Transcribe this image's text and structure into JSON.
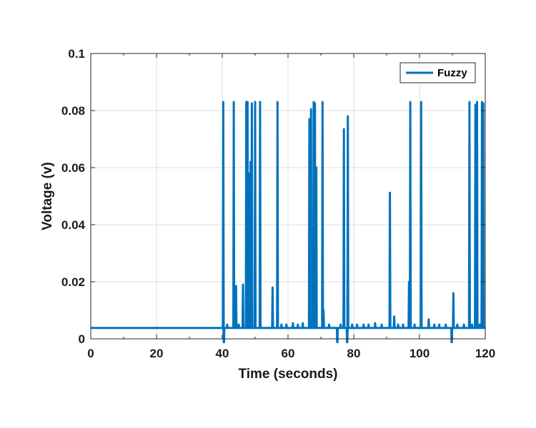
{
  "chart_data": {
    "type": "line",
    "xlabel": "Time (seconds)",
    "ylabel": "Voltage (v)",
    "xlim": [
      0,
      120
    ],
    "ylim": [
      0,
      0.1
    ],
    "x_ticks": [
      0,
      20,
      40,
      60,
      80,
      100,
      120
    ],
    "y_ticks": [
      0,
      0.02,
      0.04,
      0.06,
      0.08,
      0.1
    ],
    "x_tick_labels": [
      "0",
      "20",
      "40",
      "60",
      "80",
      "100",
      "120"
    ],
    "y_tick_labels": [
      "0",
      "0.02",
      "0.04",
      "0.06",
      "0.08",
      "0.1"
    ],
    "grid": true,
    "legend_position": "top-right",
    "baseline": 0.0038,
    "series": [
      {
        "name": "Fuzzy",
        "color": "#0072BD",
        "spikes": [
          {
            "x": 40.3,
            "y": 0.083
          },
          {
            "x": 40.5,
            "y": -0.003
          },
          {
            "x": 41.5,
            "y": 0.005
          },
          {
            "x": 43.5,
            "y": 0.083
          },
          {
            "x": 44.2,
            "y": 0.0185
          },
          {
            "x": 45.0,
            "y": 0.005
          },
          {
            "x": 46.3,
            "y": 0.019
          },
          {
            "x": 47.3,
            "y": 0.083
          },
          {
            "x": 47.7,
            "y": 0.083
          },
          {
            "x": 48.0,
            "y": 0.058
          },
          {
            "x": 48.6,
            "y": 0.062
          },
          {
            "x": 49.0,
            "y": 0.0825
          },
          {
            "x": 50.0,
            "y": 0.083
          },
          {
            "x": 51.5,
            "y": 0.083
          },
          {
            "x": 55.3,
            "y": 0.018
          },
          {
            "x": 56.8,
            "y": 0.083
          },
          {
            "x": 58.0,
            "y": 0.005
          },
          {
            "x": 59.5,
            "y": 0.005
          },
          {
            "x": 61.5,
            "y": 0.0055
          },
          {
            "x": 63.0,
            "y": 0.005
          },
          {
            "x": 64.5,
            "y": 0.0055
          },
          {
            "x": 66.5,
            "y": 0.077
          },
          {
            "x": 67.0,
            "y": 0.0805
          },
          {
            "x": 67.8,
            "y": 0.083
          },
          {
            "x": 68.2,
            "y": 0.0825
          },
          {
            "x": 68.6,
            "y": 0.06
          },
          {
            "x": 70.5,
            "y": 0.083
          },
          {
            "x": 70.8,
            "y": 0.01
          },
          {
            "x": 72.5,
            "y": 0.005
          },
          {
            "x": 75.0,
            "y": -0.003
          },
          {
            "x": 76.0,
            "y": 0.005
          },
          {
            "x": 77.0,
            "y": 0.0735
          },
          {
            "x": 78.0,
            "y": -0.003
          },
          {
            "x": 78.2,
            "y": 0.078
          },
          {
            "x": 79.5,
            "y": 0.005
          },
          {
            "x": 81.0,
            "y": 0.005
          },
          {
            "x": 83.0,
            "y": 0.005
          },
          {
            "x": 84.5,
            "y": 0.005
          },
          {
            "x": 86.5,
            "y": 0.0055
          },
          {
            "x": 88.5,
            "y": 0.005
          },
          {
            "x": 91.0,
            "y": 0.0512
          },
          {
            "x": 92.3,
            "y": 0.0078
          },
          {
            "x": 93.5,
            "y": 0.005
          },
          {
            "x": 95.0,
            "y": 0.005
          },
          {
            "x": 96.8,
            "y": 0.02
          },
          {
            "x": 97.2,
            "y": 0.083
          },
          {
            "x": 98.5,
            "y": 0.005
          },
          {
            "x": 100.5,
            "y": 0.083
          },
          {
            "x": 102.8,
            "y": 0.0068
          },
          {
            "x": 104.5,
            "y": 0.005
          },
          {
            "x": 106.0,
            "y": 0.005
          },
          {
            "x": 108.0,
            "y": 0.005
          },
          {
            "x": 109.8,
            "y": -0.003
          },
          {
            "x": 110.3,
            "y": 0.016
          },
          {
            "x": 111.5,
            "y": 0.005
          },
          {
            "x": 113.5,
            "y": 0.005
          },
          {
            "x": 115.2,
            "y": 0.083
          },
          {
            "x": 116.0,
            "y": 0.005
          },
          {
            "x": 117.0,
            "y": 0.082
          },
          {
            "x": 117.5,
            "y": 0.083
          },
          {
            "x": 118.3,
            "y": 0.005
          },
          {
            "x": 119.0,
            "y": 0.083
          },
          {
            "x": 119.4,
            "y": 0.0825
          }
        ]
      }
    ]
  }
}
